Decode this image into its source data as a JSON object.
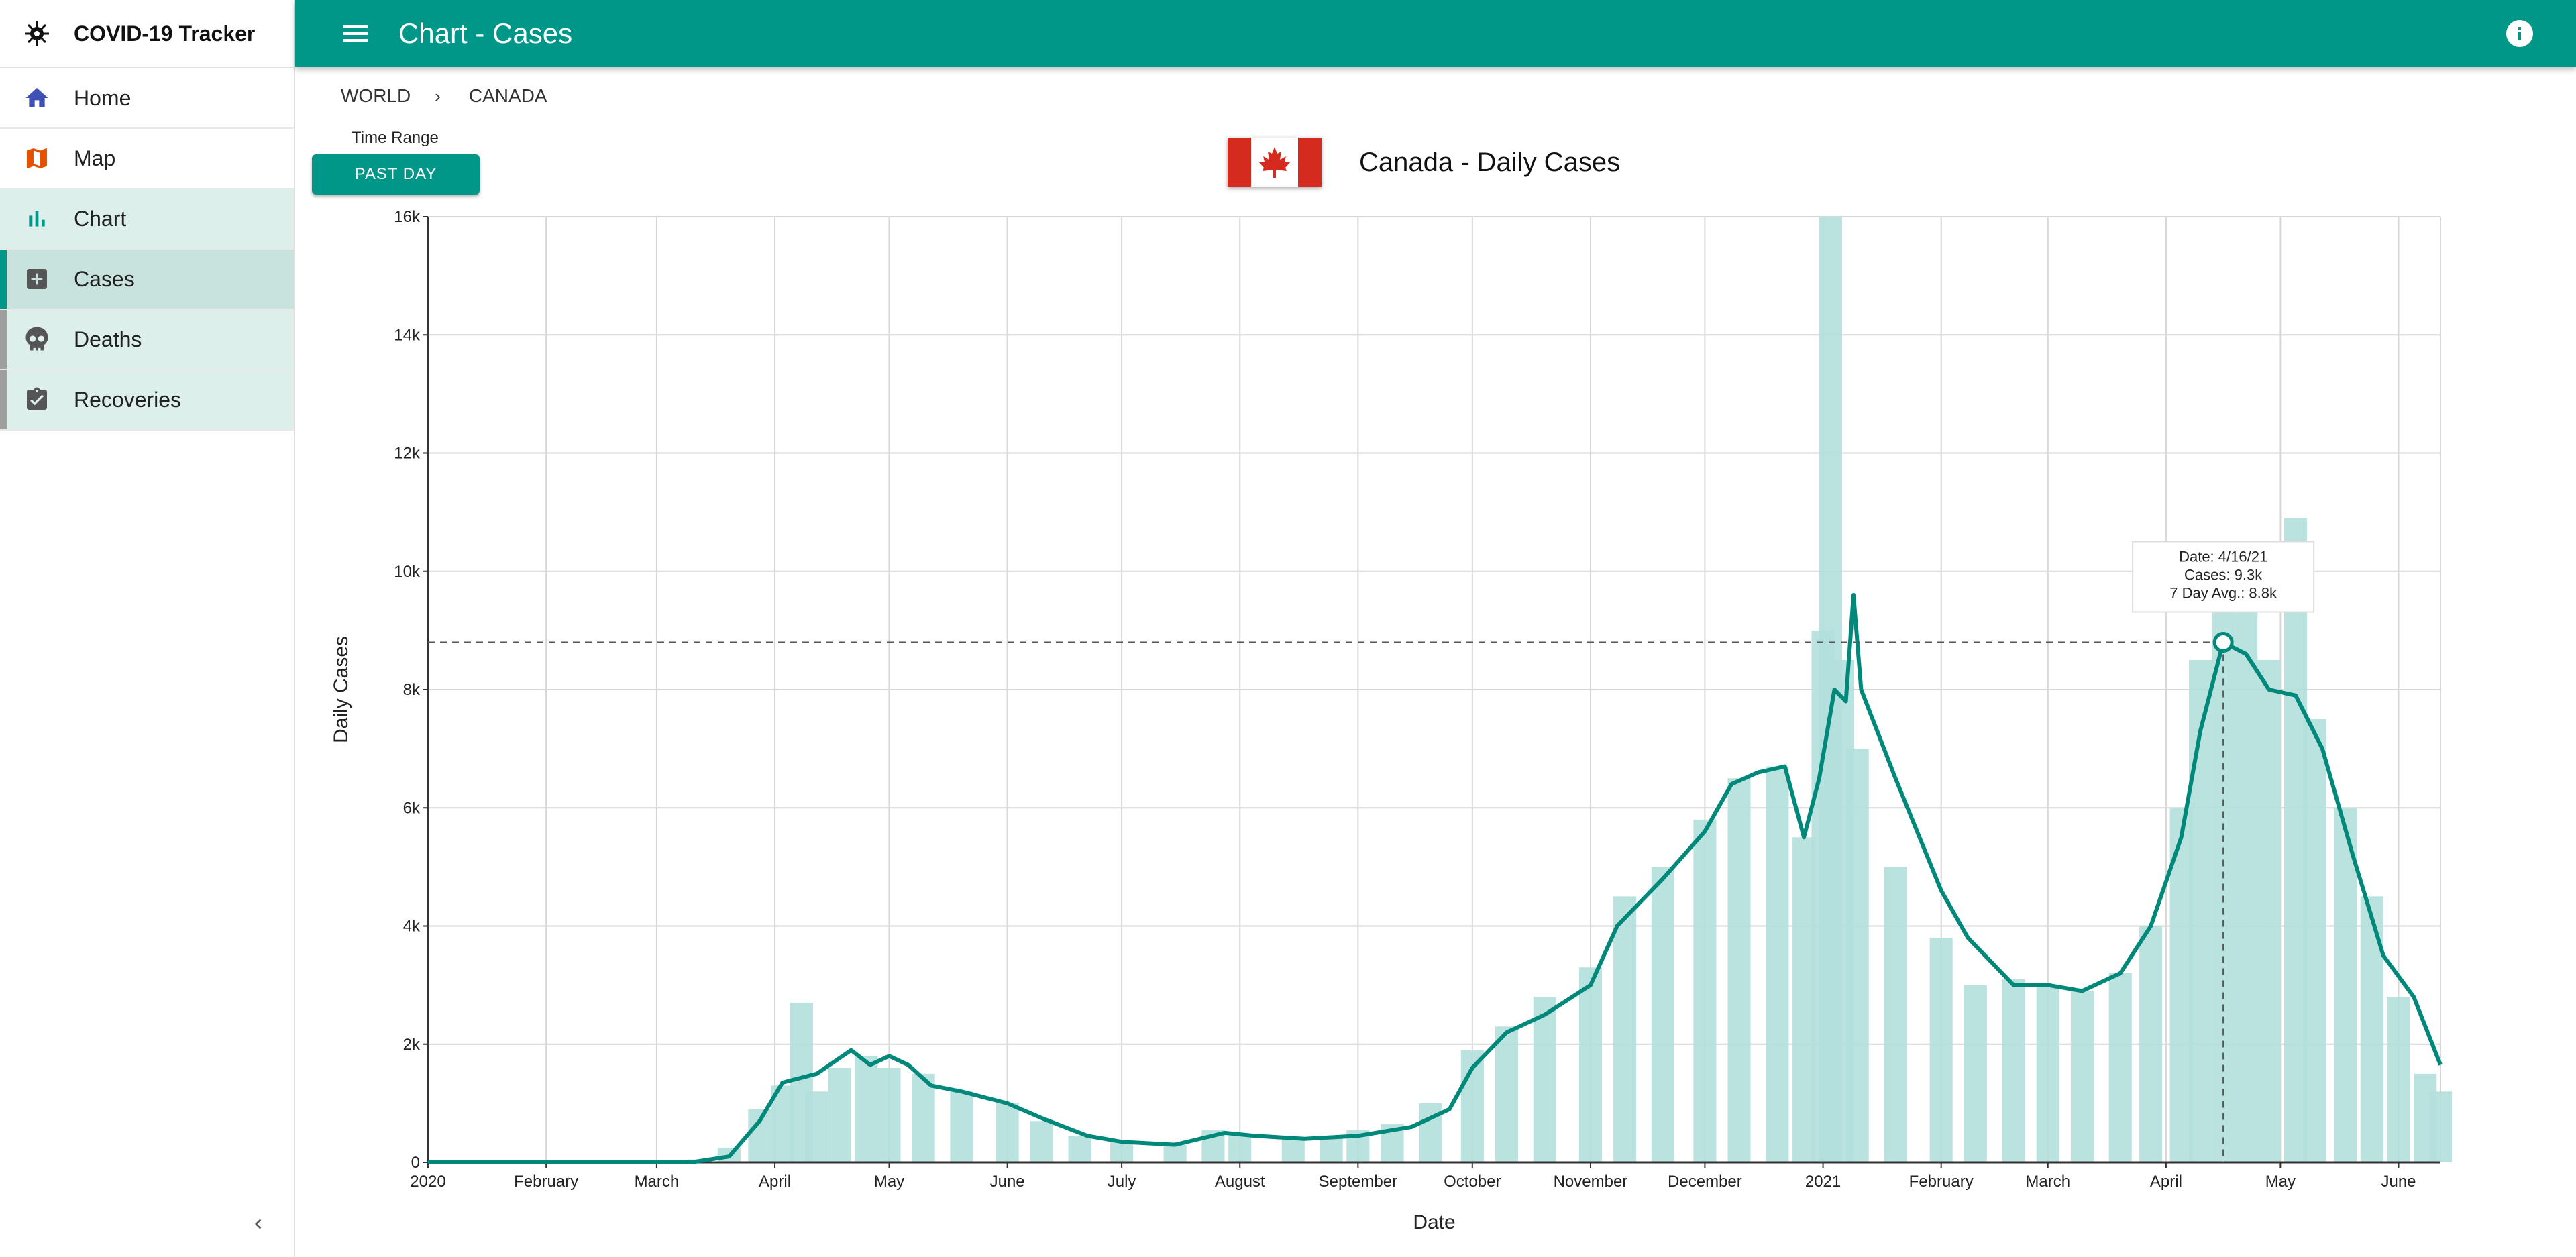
{
  "app": {
    "name": "COVID-19 Tracker",
    "icon": "virus-icon"
  },
  "topbar": {
    "title": "Chart - Cases",
    "menu_icon": "hamburger-menu-icon",
    "info_icon": "info-icon"
  },
  "sidebar": {
    "items": [
      {
        "label": "Home",
        "icon": "home-icon",
        "color": "#3f51b5"
      },
      {
        "label": "Map",
        "icon": "map-icon",
        "color": "#e65100"
      },
      {
        "label": "Chart",
        "icon": "bar-chart-icon",
        "color": "#009688"
      },
      {
        "label": "Cases",
        "icon": "plus-box-icon",
        "color": "#616161",
        "active": true
      },
      {
        "label": "Deaths",
        "icon": "skull-icon",
        "color": "#616161"
      },
      {
        "label": "Recoveries",
        "icon": "clipboard-check-icon",
        "color": "#616161"
      }
    ],
    "collapse_icon": "chevron-left-icon"
  },
  "breadcrumb": {
    "items": [
      "WORLD",
      "CANADA"
    ],
    "separator": "›"
  },
  "time_range": {
    "label": "Time Range",
    "value": "PAST DAY"
  },
  "chart_header": {
    "flag": "canada-flag",
    "title": "Canada - Daily Cases"
  },
  "colors": {
    "primary": "#009688",
    "bars": "#b2dfdb",
    "line": "#00897b"
  },
  "chart_data": {
    "type": "bar",
    "ylabel": "Daily Cases",
    "xlabel": "Date",
    "ylim": [
      0,
      16000
    ],
    "yticks": [
      0,
      2000,
      4000,
      6000,
      8000,
      10000,
      12000,
      14000,
      16000
    ],
    "ytick_labels": [
      "0",
      "2k",
      "4k",
      "6k",
      "8k",
      "10k",
      "12k",
      "14k",
      "16k"
    ],
    "x_range": [
      "2020-01-01",
      "2021-06-12"
    ],
    "xticks": [
      "2020-01-01",
      "2020-02-01",
      "2020-03-01",
      "2020-04-01",
      "2020-05-01",
      "2020-06-01",
      "2020-07-01",
      "2020-08-01",
      "2020-09-01",
      "2020-10-01",
      "2020-11-01",
      "2020-12-01",
      "2021-01-01",
      "2021-02-01",
      "2021-03-01",
      "2021-04-01",
      "2021-05-01",
      "2021-06-01"
    ],
    "xtick_labels": [
      "2020",
      "February",
      "March",
      "April",
      "May",
      "June",
      "July",
      "August",
      "September",
      "October",
      "November",
      "December",
      "2021",
      "February",
      "March",
      "April",
      "May",
      "June"
    ],
    "grid": true,
    "series": [
      {
        "name": "Cases",
        "render": "bars",
        "points": [
          [
            "2020-01-01",
            0
          ],
          [
            "2020-02-01",
            0
          ],
          [
            "2020-03-01",
            0
          ],
          [
            "2020-03-12",
            50
          ],
          [
            "2020-03-20",
            250
          ],
          [
            "2020-03-28",
            900
          ],
          [
            "2020-04-03",
            1300
          ],
          [
            "2020-04-08",
            2700
          ],
          [
            "2020-04-12",
            1200
          ],
          [
            "2020-04-18",
            1600
          ],
          [
            "2020-04-25",
            1800
          ],
          [
            "2020-05-01",
            1600
          ],
          [
            "2020-05-10",
            1500
          ],
          [
            "2020-05-20",
            1200
          ],
          [
            "2020-06-01",
            1000
          ],
          [
            "2020-06-10",
            700
          ],
          [
            "2020-06-20",
            450
          ],
          [
            "2020-07-01",
            350
          ],
          [
            "2020-07-15",
            300
          ],
          [
            "2020-07-25",
            550
          ],
          [
            "2020-08-01",
            450
          ],
          [
            "2020-08-15",
            400
          ],
          [
            "2020-08-25",
            450
          ],
          [
            "2020-09-01",
            550
          ],
          [
            "2020-09-10",
            650
          ],
          [
            "2020-09-20",
            1000
          ],
          [
            "2020-10-01",
            1900
          ],
          [
            "2020-10-10",
            2300
          ],
          [
            "2020-10-20",
            2800
          ],
          [
            "2020-11-01",
            3300
          ],
          [
            "2020-11-10",
            4500
          ],
          [
            "2020-11-20",
            5000
          ],
          [
            "2020-12-01",
            5800
          ],
          [
            "2020-12-10",
            6500
          ],
          [
            "2020-12-20",
            6700
          ],
          [
            "2020-12-27",
            5500
          ],
          [
            "2021-01-01",
            9000
          ],
          [
            "2021-01-03",
            16100
          ],
          [
            "2021-01-06",
            8500
          ],
          [
            "2021-01-10",
            7000
          ],
          [
            "2021-01-20",
            5000
          ],
          [
            "2021-02-01",
            3800
          ],
          [
            "2021-02-10",
            3000
          ],
          [
            "2021-02-20",
            3100
          ],
          [
            "2021-03-01",
            3000
          ],
          [
            "2021-03-10",
            2900
          ],
          [
            "2021-03-20",
            3200
          ],
          [
            "2021-03-28",
            4000
          ],
          [
            "2021-04-05",
            6000
          ],
          [
            "2021-04-10",
            8500
          ],
          [
            "2021-04-16",
            9300
          ],
          [
            "2021-04-22",
            10000
          ],
          [
            "2021-04-28",
            8500
          ],
          [
            "2021-05-05",
            10900
          ],
          [
            "2021-05-10",
            7500
          ],
          [
            "2021-05-18",
            6000
          ],
          [
            "2021-05-25",
            4500
          ],
          [
            "2021-06-01",
            2800
          ],
          [
            "2021-06-08",
            1500
          ],
          [
            "2021-06-12",
            1200
          ]
        ]
      },
      {
        "name": "7 Day Avg.",
        "render": "line",
        "points": [
          [
            "2020-01-01",
            0
          ],
          [
            "2020-03-10",
            0
          ],
          [
            "2020-03-20",
            100
          ],
          [
            "2020-03-28",
            700
          ],
          [
            "2020-04-03",
            1350
          ],
          [
            "2020-04-12",
            1500
          ],
          [
            "2020-04-21",
            1900
          ],
          [
            "2020-04-26",
            1650
          ],
          [
            "2020-05-01",
            1800
          ],
          [
            "2020-05-06",
            1650
          ],
          [
            "2020-05-12",
            1300
          ],
          [
            "2020-05-20",
            1200
          ],
          [
            "2020-06-01",
            1000
          ],
          [
            "2020-06-10",
            750
          ],
          [
            "2020-06-22",
            450
          ],
          [
            "2020-07-01",
            350
          ],
          [
            "2020-07-15",
            300
          ],
          [
            "2020-07-28",
            500
          ],
          [
            "2020-08-05",
            450
          ],
          [
            "2020-08-18",
            400
          ],
          [
            "2020-09-01",
            450
          ],
          [
            "2020-09-15",
            600
          ],
          [
            "2020-09-25",
            900
          ],
          [
            "2020-10-01",
            1600
          ],
          [
            "2020-10-10",
            2200
          ],
          [
            "2020-10-20",
            2500
          ],
          [
            "2020-11-01",
            3000
          ],
          [
            "2020-11-08",
            4000
          ],
          [
            "2020-11-20",
            4800
          ],
          [
            "2020-12-01",
            5600
          ],
          [
            "2020-12-08",
            6400
          ],
          [
            "2020-12-15",
            6600
          ],
          [
            "2020-12-22",
            6700
          ],
          [
            "2020-12-27",
            5500
          ],
          [
            "2020-12-31",
            6500
          ],
          [
            "2021-01-04",
            8000
          ],
          [
            "2021-01-07",
            7800
          ],
          [
            "2021-01-09",
            9600
          ],
          [
            "2021-01-11",
            8000
          ],
          [
            "2021-01-20",
            6500
          ],
          [
            "2021-02-01",
            4600
          ],
          [
            "2021-02-08",
            3800
          ],
          [
            "2021-02-20",
            3000
          ],
          [
            "2021-03-01",
            3000
          ],
          [
            "2021-03-10",
            2900
          ],
          [
            "2021-03-20",
            3200
          ],
          [
            "2021-03-28",
            4000
          ],
          [
            "2021-04-05",
            5500
          ],
          [
            "2021-04-10",
            7300
          ],
          [
            "2021-04-16",
            8800
          ],
          [
            "2021-04-22",
            8600
          ],
          [
            "2021-04-28",
            8000
          ],
          [
            "2021-05-05",
            7900
          ],
          [
            "2021-05-12",
            7000
          ],
          [
            "2021-05-20",
            5200
          ],
          [
            "2021-05-28",
            3500
          ],
          [
            "2021-06-05",
            2800
          ],
          [
            "2021-06-12",
            1650
          ]
        ]
      }
    ],
    "tooltip": {
      "date": "Date: 4/16/21",
      "cases": "Cases: 9.3k",
      "avg": "7 Day Avg.: 8.8k",
      "x": "2021-04-16",
      "y": 8800
    }
  }
}
